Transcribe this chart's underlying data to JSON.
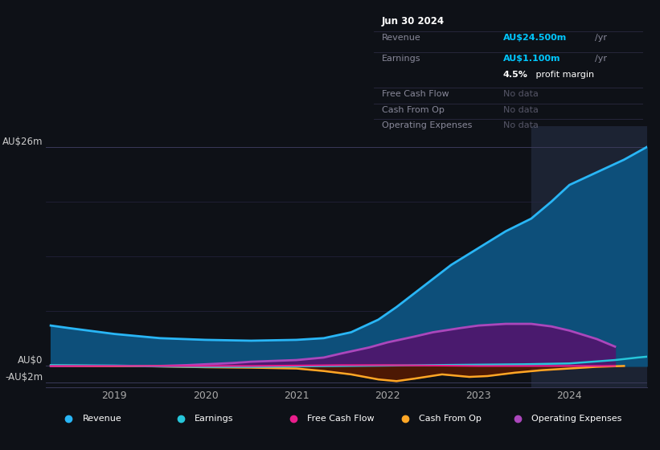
{
  "background_color": "#0e1117",
  "chart_bg_color": "#0e1117",
  "highlight_bg_color": "#1c2333",
  "y_label_top": "AU$26m",
  "y_label_zero": "AU$0",
  "y_label_neg": "-AU$2m",
  "x_labels": [
    "2019",
    "2020",
    "2021",
    "2022",
    "2023",
    "2024"
  ],
  "ylim": [
    -2.5,
    28.5
  ],
  "xlim": [
    2018.25,
    2024.85
  ],
  "highlight_x_start": 2023.58,
  "tooltip": {
    "date": "Jun 30 2024",
    "revenue_label": "Revenue",
    "revenue_value": "AU$24.500m",
    "revenue_unit": "/yr",
    "earnings_label": "Earnings",
    "earnings_value": "AU$1.100m",
    "earnings_unit": "/yr",
    "margin_text": "4.5%",
    "margin_text2": " profit margin",
    "fcf_label": "Free Cash Flow",
    "fcf_value": "No data",
    "cfo_label": "Cash From Op",
    "cfo_value": "No data",
    "opex_label": "Operating Expenses",
    "opex_value": "No data"
  },
  "series": {
    "revenue": {
      "color": "#29b6f6",
      "fill_color": "#0d4f7a",
      "label": "Revenue",
      "x": [
        2018.3,
        2018.5,
        2019.0,
        2019.5,
        2020.0,
        2020.5,
        2021.0,
        2021.3,
        2021.6,
        2021.9,
        2022.1,
        2022.4,
        2022.7,
        2023.0,
        2023.3,
        2023.58,
        2023.8,
        2024.0,
        2024.3,
        2024.6,
        2024.85
      ],
      "y": [
        4.8,
        4.5,
        3.8,
        3.3,
        3.1,
        3.0,
        3.1,
        3.3,
        4.0,
        5.5,
        7.0,
        9.5,
        12.0,
        14.0,
        16.0,
        17.5,
        19.5,
        21.5,
        23.0,
        24.5,
        26.0
      ]
    },
    "earnings": {
      "color": "#26c6da",
      "label": "Earnings",
      "x": [
        2018.3,
        2019.0,
        2019.5,
        2020.0,
        2020.5,
        2021.0,
        2021.5,
        2022.0,
        2022.5,
        2023.0,
        2023.5,
        2024.0,
        2024.5,
        2024.75,
        2024.85
      ],
      "y": [
        0.1,
        0.05,
        -0.05,
        -0.1,
        -0.1,
        -0.05,
        0.0,
        0.05,
        0.1,
        0.15,
        0.2,
        0.3,
        0.7,
        1.0,
        1.1
      ]
    },
    "free_cash_flow": {
      "color": "#e91e8c",
      "label": "Free Cash Flow",
      "x": [
        2018.3,
        2019.0,
        2019.5,
        2020.0,
        2020.5,
        2021.0,
        2021.5,
        2022.0,
        2022.5,
        2023.0,
        2023.5,
        2024.0,
        2024.5
      ],
      "y": [
        0.0,
        0.0,
        0.0,
        0.0,
        0.0,
        0.05,
        0.1,
        0.1,
        0.05,
        0.0,
        0.0,
        0.0,
        0.0
      ]
    },
    "cash_from_op": {
      "color": "#ffa726",
      "label": "Cash From Op",
      "x": [
        2018.3,
        2019.0,
        2019.5,
        2020.0,
        2020.5,
        2021.0,
        2021.3,
        2021.6,
        2021.9,
        2022.1,
        2022.3,
        2022.6,
        2022.9,
        2023.1,
        2023.4,
        2023.7,
        2024.0,
        2024.3,
        2024.6
      ],
      "y": [
        0.05,
        0.0,
        -0.05,
        -0.15,
        -0.2,
        -0.3,
        -0.6,
        -1.0,
        -1.6,
        -1.8,
        -1.5,
        -1.0,
        -1.3,
        -1.2,
        -0.8,
        -0.5,
        -0.3,
        -0.1,
        0.0
      ]
    },
    "operating_expenses": {
      "color": "#ab47bc",
      "fill_color": "#4a1a6e",
      "label": "Operating Expenses",
      "x": [
        2018.3,
        2019.0,
        2019.5,
        2019.8,
        2020.0,
        2020.3,
        2020.5,
        2021.0,
        2021.3,
        2021.5,
        2021.8,
        2022.0,
        2022.3,
        2022.5,
        2022.8,
        2023.0,
        2023.3,
        2023.58,
        2023.8,
        2024.0,
        2024.3,
        2024.5
      ],
      "y": [
        0.0,
        0.0,
        0.0,
        0.1,
        0.2,
        0.35,
        0.5,
        0.7,
        1.0,
        1.5,
        2.2,
        2.8,
        3.5,
        4.0,
        4.5,
        4.8,
        5.0,
        5.0,
        4.7,
        4.2,
        3.2,
        2.3
      ]
    }
  },
  "legend_items": [
    {
      "label": "Revenue",
      "color": "#29b6f6"
    },
    {
      "label": "Earnings",
      "color": "#26c6da"
    },
    {
      "label": "Free Cash Flow",
      "color": "#e91e8c"
    },
    {
      "label": "Cash From Op",
      "color": "#ffa726"
    },
    {
      "label": "Operating Expenses",
      "color": "#ab47bc"
    }
  ]
}
